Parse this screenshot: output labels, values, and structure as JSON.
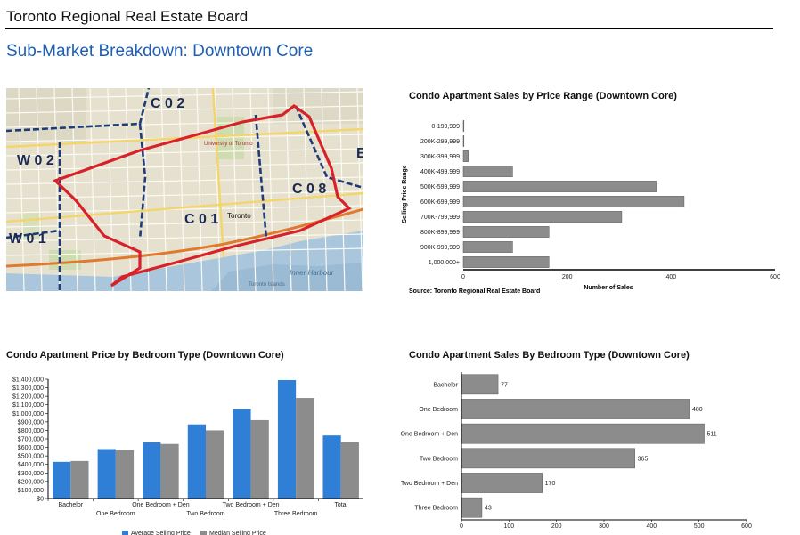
{
  "header": {
    "title": "Toronto Regional Real Estate Board"
  },
  "subtitle": "Sub-Market Breakdown: Downtown Core",
  "map": {
    "district_labels": [
      "C 0 2",
      "W 0 2",
      "C 0 1",
      "C 0 8",
      "W 0 1",
      "E"
    ],
    "place_labels": [
      "University of Toronto",
      "Toronto",
      "Inner Harbour",
      "Toronto Islands"
    ]
  },
  "chart_data": [
    {
      "id": "price_range",
      "type": "bar",
      "orientation": "horizontal",
      "title": "Condo Apartment Sales by Price Range (Downtown Core)",
      "ylabel": "Selling Price Range",
      "xlabel": "Number of Sales",
      "source": "Source: Toronto Regional Real Estate Board",
      "categories": [
        "0-199,999",
        "200K-299,999",
        "300K-399,999",
        "400K-499,999",
        "500K-599,999",
        "600K-699,999",
        "700K-799,999",
        "800K-899,999",
        "900K-999,999",
        "1,000,000+"
      ],
      "values": [
        1,
        1,
        10,
        95,
        372,
        425,
        305,
        165,
        95,
        165
      ],
      "xlim": [
        0,
        600
      ],
      "xticks": [
        "0",
        "200",
        "400",
        "600"
      ],
      "bar_color": "#8c8c8c"
    },
    {
      "id": "bedroom_price",
      "type": "bar",
      "title": "Condo Apartment Price by Bedroom Type (Downtown Core)",
      "categories": [
        "Bachelor",
        "One Bedroom",
        "One Bedroom + Den",
        "Two Bedroom",
        "Two Bedroom + Den",
        "Three Bedroom",
        "Total"
      ],
      "series": [
        {
          "name": "Average Selling Price",
          "values": [
            430000,
            580000,
            660000,
            870000,
            1050000,
            1390000,
            740000
          ],
          "color": "#2f7fd6"
        },
        {
          "name": "Median Selling Price",
          "values": [
            440000,
            570000,
            640000,
            800000,
            920000,
            1180000,
            660000
          ],
          "color": "#8c8c8c"
        }
      ],
      "ylim": [
        0,
        1400000
      ],
      "yticks": [
        "$0",
        "$100,000",
        "$200,000",
        "$300,000",
        "$400,000",
        "$500,000",
        "$600,000",
        "$700,000",
        "$800,000",
        "$900,000",
        "$1,000,000",
        "$1,100,000",
        "$1,200,000",
        "$1,300,000",
        "$1,400,000"
      ],
      "legend": "bottom"
    },
    {
      "id": "bedroom_sales",
      "type": "bar",
      "orientation": "horizontal",
      "title": "Condo Apartment Sales By Bedroom Type (Downtown Core)",
      "categories": [
        "Bachelor",
        "One Bedroom",
        "One Bedroom + Den",
        "Two Bedroom",
        "Two Bedroom + Den",
        "Three Bedroom"
      ],
      "values": [
        77,
        480,
        511,
        365,
        170,
        43
      ],
      "xlim": [
        0,
        600
      ],
      "xticks": [
        "0",
        "100",
        "200",
        "300",
        "400",
        "500",
        "600"
      ],
      "bar_color": "#8c8c8c"
    }
  ]
}
